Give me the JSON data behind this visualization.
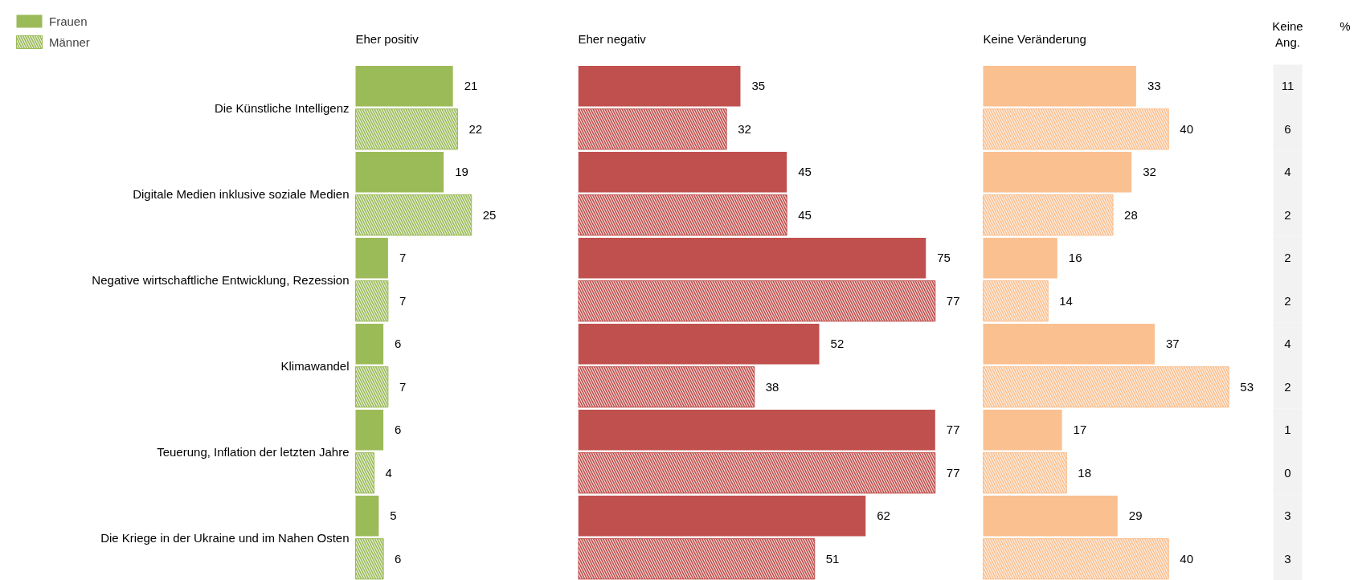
{
  "chart_data": [
    {
      "type": "bar",
      "orientation": "horizontal",
      "title": "Eher positiv",
      "categories": [
        "Die Künstliche Intelligenz",
        "Digitale Medien inklusive soziale Medien",
        "Negative wirtschaftliche Entwicklung, Rezession",
        "Klimawandel",
        "Teuerung, Inflation der letzten Jahre",
        "Die Kriege in der Ukraine und im Nahen Osten"
      ],
      "data_labels": true,
      "legend": "top left",
      "tick_labels": "y",
      "series": [
        {
          "name": "Frauen",
          "color": "#9bbb59",
          "values": [
            21,
            19,
            7,
            6,
            6,
            5
          ]
        },
        {
          "name": "Männer",
          "color": "#9bbb59",
          "values": [
            22,
            25,
            7,
            7,
            4,
            6
          ]
        }
      ]
    },
    {
      "type": "bar",
      "orientation": "horizontal",
      "title": "Eher negativ",
      "data_labels": true,
      "tick_labels": false,
      "series": [
        {
          "color": "#c0504d",
          "values": [
            35,
            45,
            75,
            52,
            77,
            62
          ]
        },
        {
          "color": "#c0504d",
          "values": [
            32,
            45,
            77,
            38,
            77,
            51
          ]
        }
      ]
    },
    {
      "type": "bar",
      "orientation": "horizontal",
      "title": "Keine Veränderung",
      "data_labels": true,
      "tick_labels": false,
      "series": [
        {
          "color": "#fac090",
          "values": [
            33,
            32,
            16,
            37,
            17,
            29
          ]
        },
        {
          "color": "#fac090",
          "values": [
            40,
            28,
            14,
            53,
            18,
            40
          ]
        }
      ]
    },
    {
      "type": "other",
      "title": "Keine Ang.",
      "annotations": [
        "%"
      ],
      "data_labels": true,
      "values": [
        11,
        6,
        4,
        2,
        2,
        2,
        4,
        2,
        1,
        0,
        3,
        3
      ]
    }
  ]
}
